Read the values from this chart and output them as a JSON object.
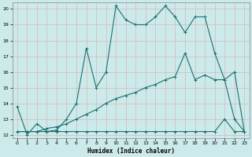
{
  "xlabel": "Humidex (Indice chaleur)",
  "bg_color": "#cceaea",
  "grid_color": "#c0d8d8",
  "line_color": "#1a7070",
  "xlim": [
    -0.5,
    23.5
  ],
  "ylim": [
    11.8,
    20.4
  ],
  "xticks": [
    0,
    1,
    2,
    3,
    4,
    5,
    6,
    7,
    8,
    9,
    10,
    11,
    12,
    13,
    14,
    15,
    16,
    17,
    18,
    19,
    20,
    21,
    22,
    23
  ],
  "yticks": [
    12,
    13,
    14,
    15,
    16,
    17,
    18,
    19,
    20
  ],
  "series1_x": [
    0,
    1,
    2,
    3,
    4,
    5,
    6,
    7,
    8,
    9,
    10,
    11,
    12,
    13,
    14,
    15,
    16,
    17,
    18,
    19,
    20,
    21,
    22,
    23
  ],
  "series1_y": [
    13.8,
    12.0,
    12.7,
    12.2,
    12.3,
    13.0,
    14.0,
    17.5,
    15.0,
    16.0,
    20.2,
    19.3,
    19.0,
    19.0,
    19.5,
    20.2,
    19.5,
    18.5,
    19.5,
    19.5,
    17.2,
    15.5,
    13.0,
    12.2
  ],
  "series2_x": [
    0,
    1,
    2,
    3,
    4,
    5,
    6,
    7,
    8,
    9,
    10,
    11,
    12,
    13,
    14,
    15,
    16,
    17,
    18,
    19,
    20,
    21,
    22,
    23
  ],
  "series2_y": [
    12.2,
    12.2,
    12.2,
    12.2,
    12.2,
    12.2,
    12.2,
    12.2,
    12.2,
    12.2,
    12.2,
    12.2,
    12.2,
    12.2,
    12.2,
    12.2,
    12.2,
    12.2,
    12.2,
    12.2,
    12.2,
    13.0,
    12.2,
    12.2
  ],
  "series3_x": [
    0,
    1,
    2,
    3,
    4,
    5,
    6,
    7,
    8,
    9,
    10,
    11,
    12,
    13,
    14,
    15,
    16,
    17,
    18,
    19,
    20,
    21,
    22,
    23
  ],
  "series3_y": [
    12.2,
    12.2,
    12.2,
    12.4,
    12.5,
    12.7,
    13.0,
    13.3,
    13.6,
    14.0,
    14.3,
    14.5,
    14.7,
    15.0,
    15.2,
    15.5,
    15.7,
    17.2,
    15.5,
    15.8,
    15.5,
    15.5,
    16.0,
    12.2
  ]
}
